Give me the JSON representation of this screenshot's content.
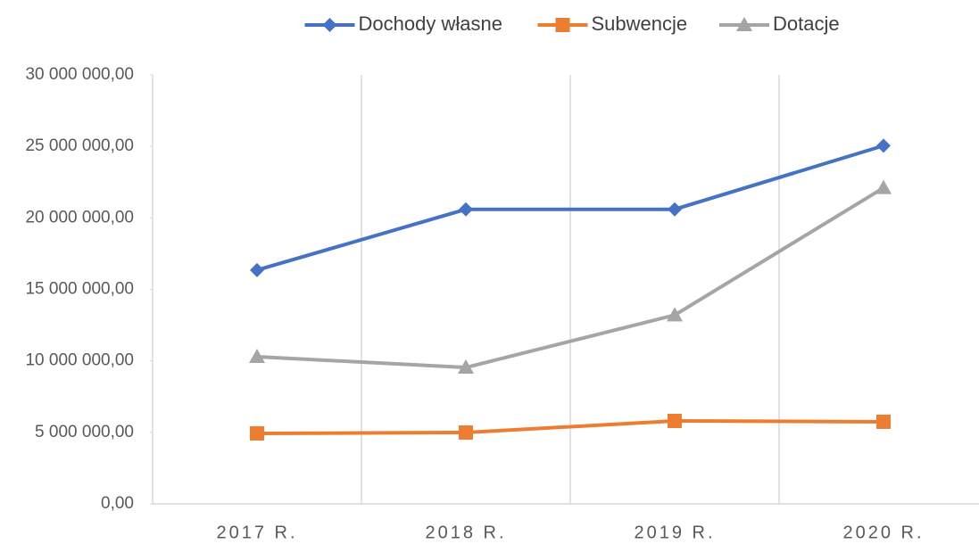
{
  "chart_data": {
    "type": "line",
    "categories": [
      "2017 R.",
      "2018 R.",
      "2019 R.",
      "2020 R."
    ],
    "series": [
      {
        "name": "Dochody własne",
        "color": "#4472c4",
        "marker": "diamond",
        "values": [
          16350000,
          20600000,
          20600000,
          25050000
        ]
      },
      {
        "name": "Subwencje",
        "color": "#ed7d31",
        "marker": "square",
        "values": [
          4930000,
          4990000,
          5800000,
          5740000
        ]
      },
      {
        "name": "Dotacje",
        "color": "#a5a5a5",
        "marker": "triangle",
        "values": [
          10290000,
          9540000,
          13200000,
          22100000
        ]
      }
    ],
    "ylim": [
      0,
      30000000
    ],
    "yticks": [
      {
        "value": 0,
        "label": "0,00"
      },
      {
        "value": 5000000,
        "label": "5 000 000,00"
      },
      {
        "value": 10000000,
        "label": "10 000 000,00"
      },
      {
        "value": 15000000,
        "label": "15 000 000,00"
      },
      {
        "value": 20000000,
        "label": "20 000 000,00"
      },
      {
        "value": 25000000,
        "label": "25 000 000,00"
      },
      {
        "value": 30000000,
        "label": "30 000 000,00"
      }
    ],
    "legend": "top"
  }
}
